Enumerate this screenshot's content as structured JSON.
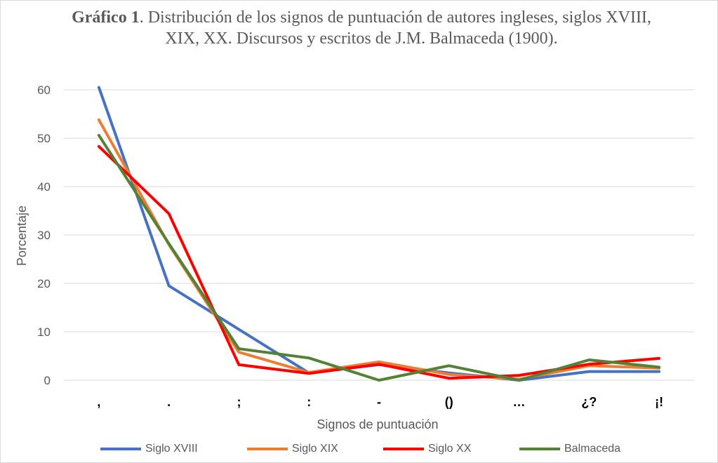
{
  "chart_data": {
    "type": "line",
    "title_bold": "Gráfico 1",
    "title_rest": ". Distribución de los signos de puntuación de autores ingleses,  siglos XVIII, XIX, XX. Discursos y escritos de J.M. Balmaceda (1900).",
    "xlabel": "Signos de puntuación",
    "ylabel": "Porcentaje",
    "ylim": [
      0,
      60
    ],
    "yticks": [
      0,
      10,
      20,
      30,
      40,
      50,
      60
    ],
    "grid": true,
    "legend_position": "bottom",
    "categories": [
      ",",
      ".",
      ";",
      ":",
      "-",
      "()",
      "…",
      "¿?",
      "¡!"
    ],
    "series": [
      {
        "name": "Siglo XVIII",
        "color": "#4472C4",
        "values": [
          60.5,
          19.5,
          10.5,
          1.5,
          3.2,
          1.5,
          0,
          1.8,
          1.8
        ]
      },
      {
        "name": "Siglo XIX",
        "color": "#ED7D31",
        "values": [
          53.8,
          28,
          5.8,
          1.6,
          3.8,
          1.2,
          0.2,
          3.0,
          2.5
        ]
      },
      {
        "name": "Siglo XX",
        "color": "#FF0000",
        "values": [
          48.3,
          34.4,
          3.2,
          1.4,
          3.3,
          0.4,
          1.0,
          3.3,
          4.5
        ]
      },
      {
        "name": "Balmaceda",
        "color": "#548235",
        "values": [
          50.6,
          28.2,
          6.5,
          4.6,
          0,
          3.0,
          0,
          4.2,
          2.7
        ]
      }
    ]
  }
}
